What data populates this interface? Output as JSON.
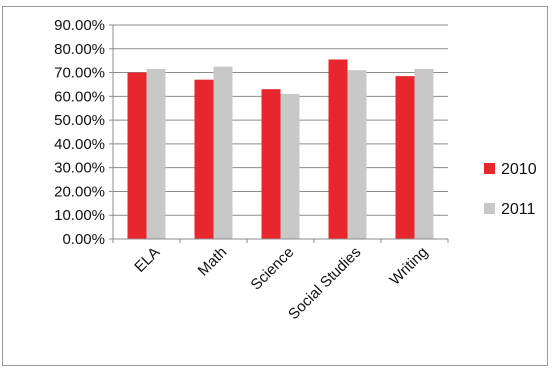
{
  "chart_data": {
    "type": "bar",
    "categories": [
      "ELA",
      "Math",
      "Science",
      "Social Studies",
      "Writing"
    ],
    "series": [
      {
        "name": "2010",
        "values": [
          0.7,
          0.67,
          0.63,
          0.755,
          0.685
        ],
        "color": "#e8262d"
      },
      {
        "name": "2011",
        "values": [
          0.715,
          0.725,
          0.61,
          0.71,
          0.715
        ],
        "color": "#c8c8c8"
      }
    ],
    "ylim": [
      0,
      0.9
    ],
    "y_ticks": [
      "0.00%",
      "10.00%",
      "20.00%",
      "30.00%",
      "40.00%",
      "50.00%",
      "60.00%",
      "70.00%",
      "80.00%",
      "90.00%"
    ],
    "grid": true,
    "legend_position": "right",
    "title": "",
    "xlabel": "",
    "ylabel": ""
  }
}
